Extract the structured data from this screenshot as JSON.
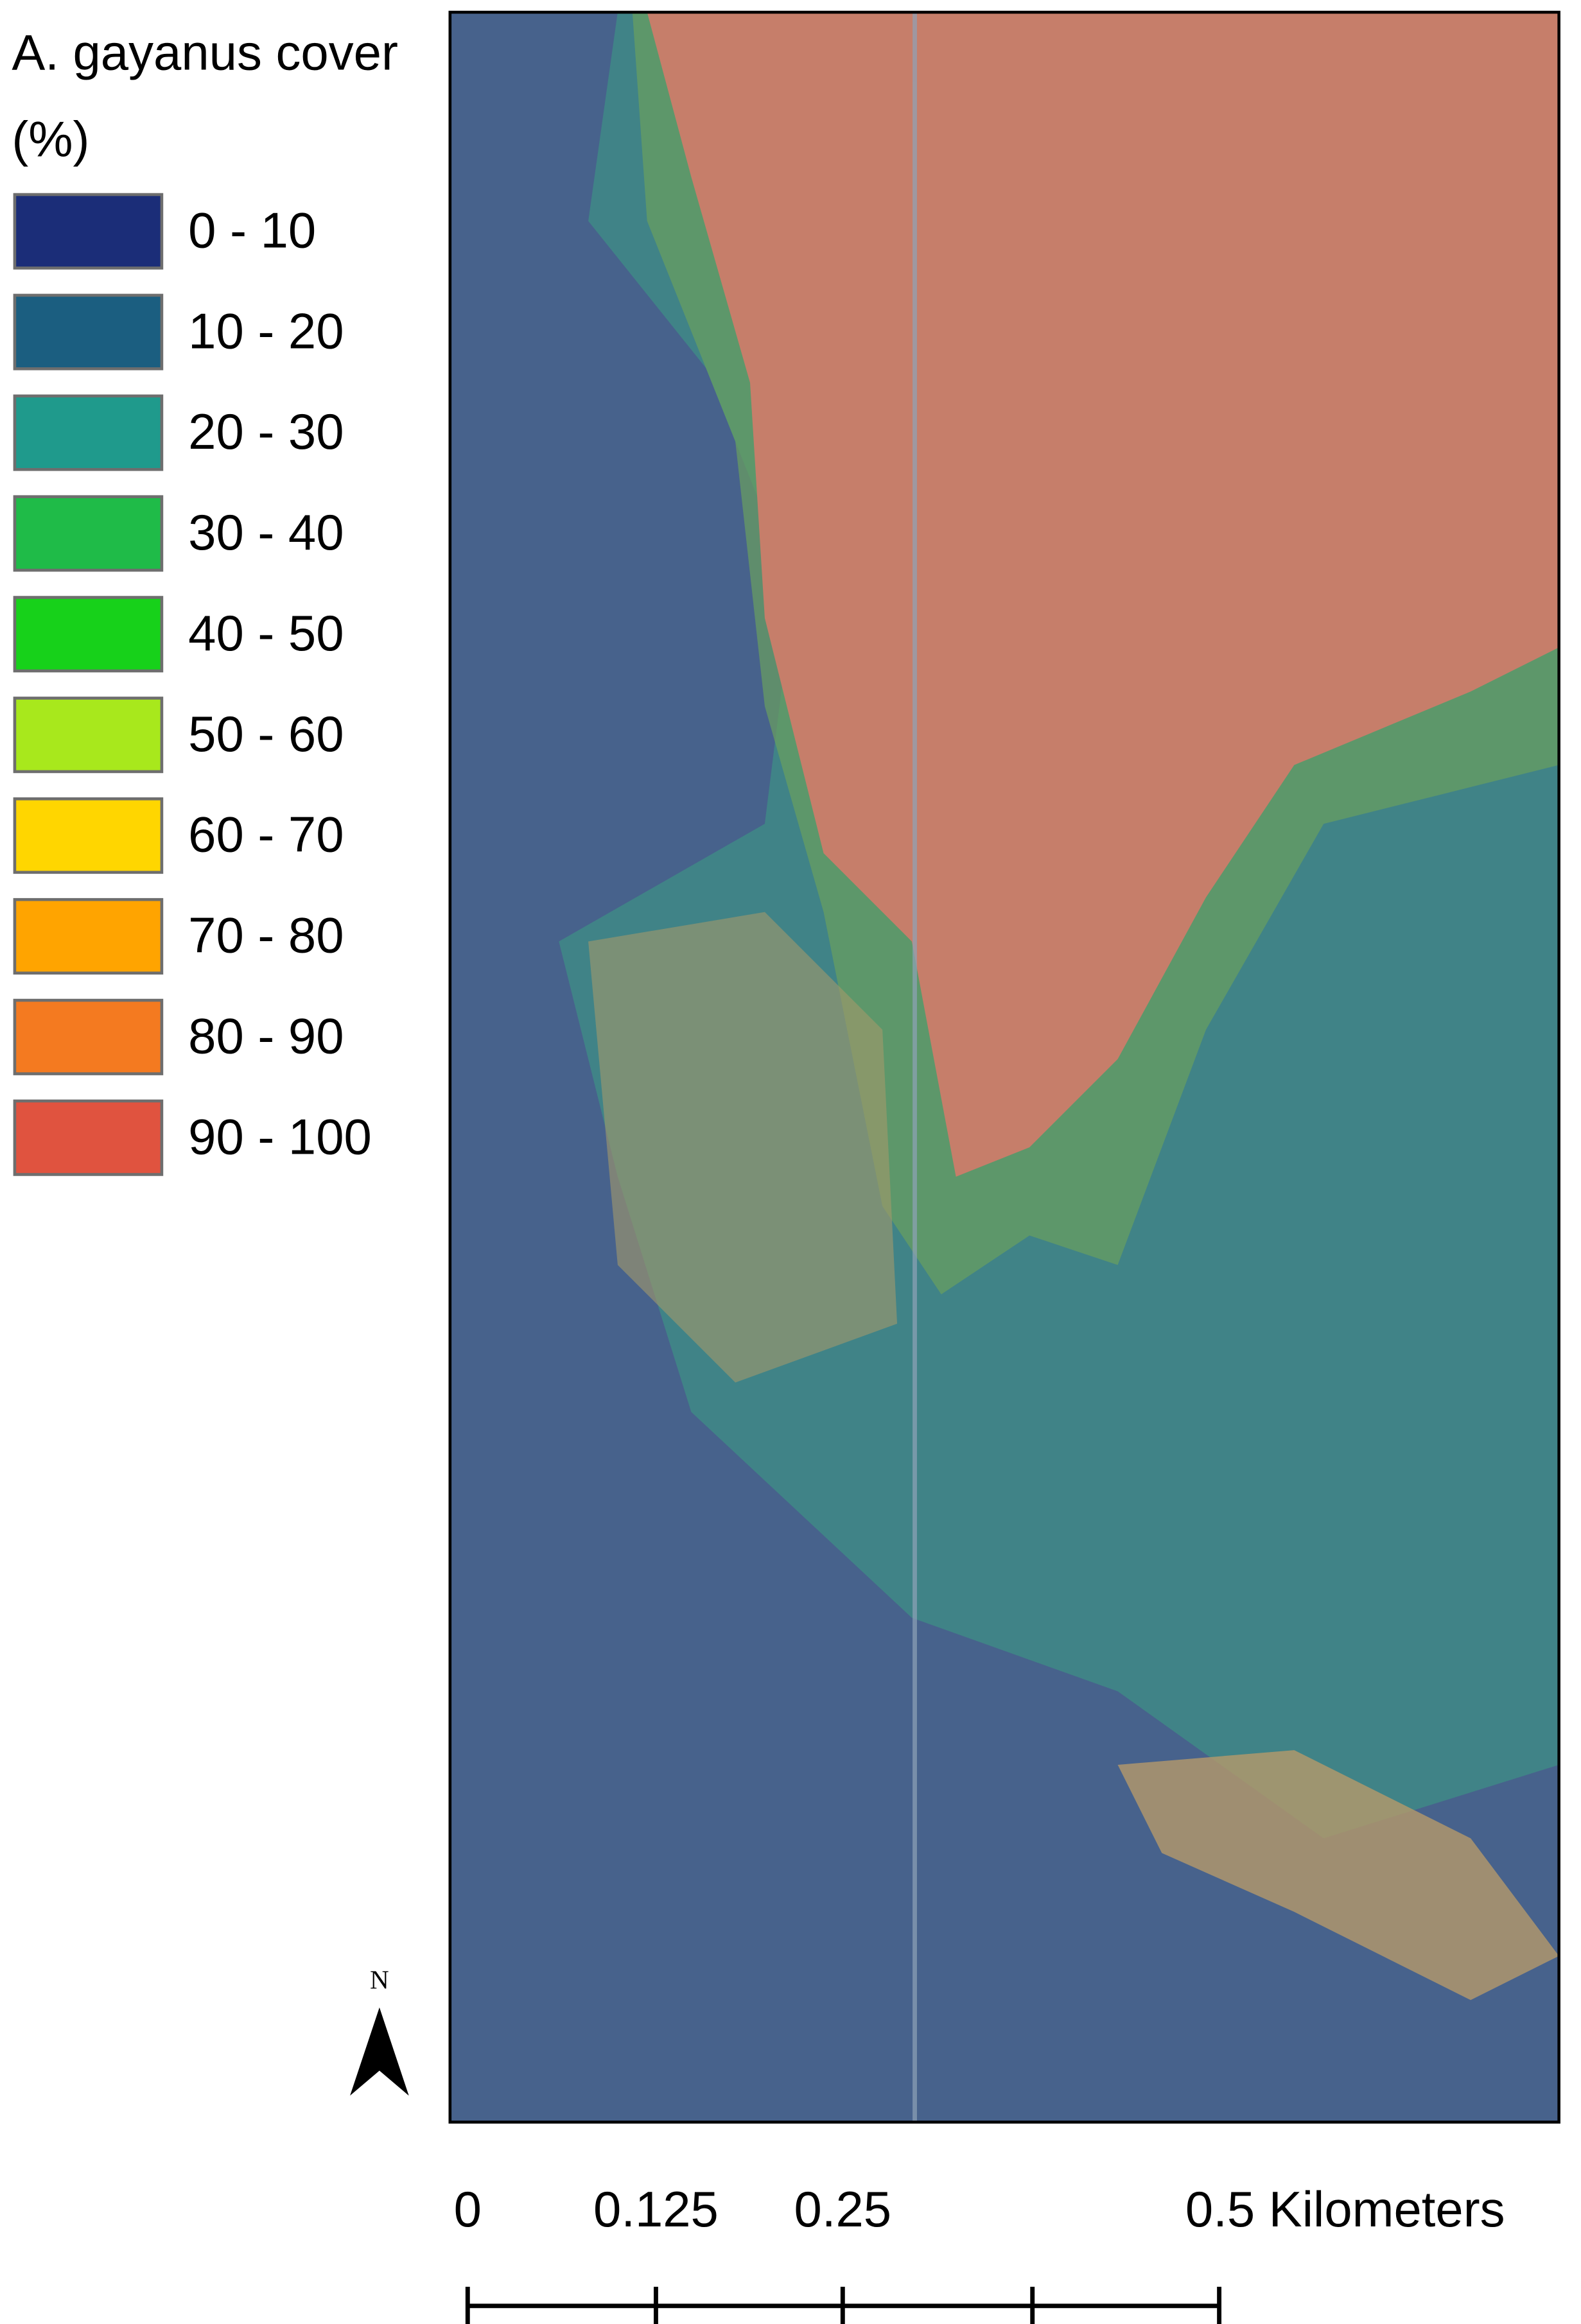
{
  "legend": {
    "title": "A. gayanus cover",
    "subtitle": "(%)",
    "items": [
      {
        "label": "0 - 10",
        "color": "#1b2d78"
      },
      {
        "label": "10 - 20",
        "color": "#1b5e80"
      },
      {
        "label": "20 - 30",
        "color": "#1f9a8c"
      },
      {
        "label": "30 - 40",
        "color": "#1fbb48"
      },
      {
        "label": "40 - 50",
        "color": "#17d11a"
      },
      {
        "label": "50 - 60",
        "color": "#a8e81c"
      },
      {
        "label": "60 - 70",
        "color": "#ffd600"
      },
      {
        "label": "70 - 80",
        "color": "#ffa400"
      },
      {
        "label": "80 - 90",
        "color": "#f47a20"
      },
      {
        "label": "90 - 100",
        "color": "#e0533f"
      }
    ]
  },
  "north_arrow": {
    "label": "N"
  },
  "scale_bar": {
    "labels": [
      "0",
      "0.125",
      "0.25",
      "0.5 Kilometers"
    ]
  }
}
